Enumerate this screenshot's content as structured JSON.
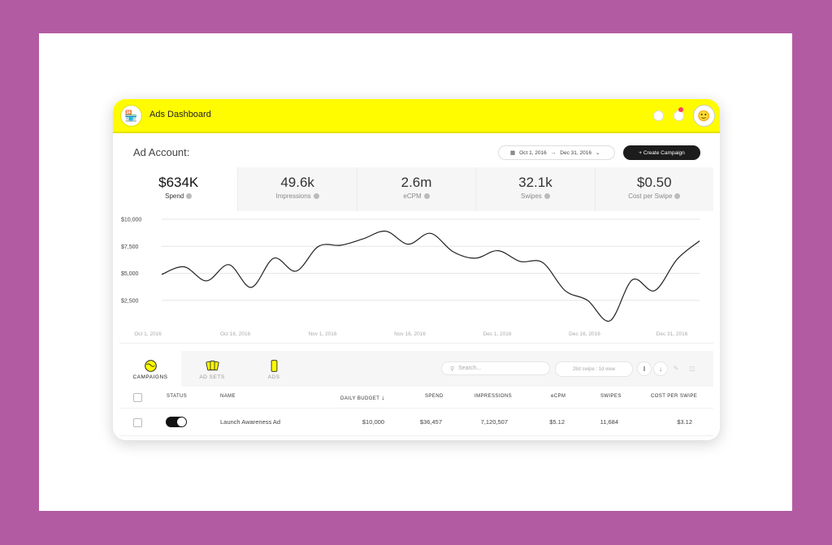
{
  "header": {
    "app_title": "Ads Dashboard"
  },
  "account": {
    "label": "Ad Account:"
  },
  "date_range": {
    "start": "Oct 1, 2016",
    "end": "Dec 31, 2016"
  },
  "create_button": "+ Create Campaign",
  "metrics": [
    {
      "value": "$634K",
      "label": "Spend"
    },
    {
      "value": "49.6k",
      "label": "Impressions"
    },
    {
      "value": "2.6m",
      "label": "eCPM"
    },
    {
      "value": "32.1k",
      "label": "Swipes"
    },
    {
      "value": "$0.50",
      "label": "Cost per Swipe"
    }
  ],
  "chart_data": {
    "type": "line",
    "title": "",
    "xlabel": "",
    "ylabel": "",
    "ylim": [
      0,
      10000
    ],
    "y_ticks": [
      "$10,000",
      "$7,500",
      "$5,000",
      "$2,500"
    ],
    "x_ticks": [
      "Oct 1, 2016",
      "Oct 16, 2016",
      "Nov 1, 2016",
      "Nov 16, 2016",
      "Dec 1, 2016",
      "Dec 16, 2016",
      "Dec 31, 2016"
    ],
    "grid": true,
    "series": [
      {
        "values": [
          4900,
          5600,
          4300,
          5800,
          3700,
          6400,
          5200,
          7500,
          7600,
          8200,
          8900,
          7700,
          8700,
          7000,
          6400,
          7100,
          6100,
          6000,
          3400,
          2500,
          600,
          4400,
          3400,
          6300,
          8000
        ]
      }
    ]
  },
  "tabs": [
    {
      "label": "CAMPAIGNS"
    },
    {
      "label": "AD SETS"
    },
    {
      "label": "ADS"
    }
  ],
  "search": {
    "placeholder": "Search..."
  },
  "attribution": "28d swipe : 1d view",
  "table": {
    "columns": [
      "STATUS",
      "NAME",
      "DAILY BUDGET",
      "SPEND",
      "IMPRESSIONS",
      "eCPM",
      "SWIPES",
      "COST PER SWIPE"
    ],
    "rows": [
      {
        "name": "Launch Awareness Ad",
        "daily_budget": "$10,000",
        "spend": "$36,457",
        "impressions": "7,120,507",
        "ecpm": "$5.12",
        "swipes": "11,684",
        "cost_per_swipe": "$3.12"
      }
    ]
  },
  "colors": {
    "brand_yellow": "#fffc00",
    "background": "#b35ba2"
  }
}
